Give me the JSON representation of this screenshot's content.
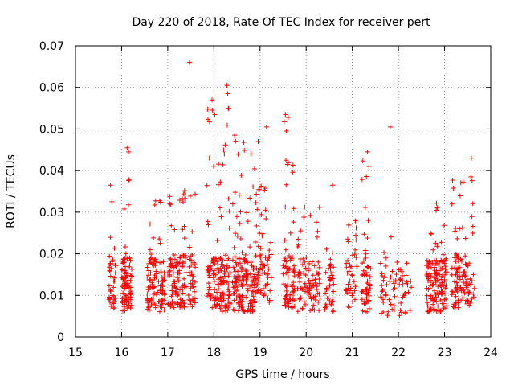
{
  "chart_data": {
    "type": "scatter",
    "title": "Day 220 of 2018, Rate Of TEC Index for receiver pert",
    "xlabel": "GPS time / hours",
    "ylabel": "ROTI / TECUs",
    "xlim": [
      15,
      24
    ],
    "ylim": [
      0,
      0.07
    ],
    "xticks": [
      "15",
      "16",
      "17",
      "18",
      "19",
      "20",
      "21",
      "22",
      "23",
      "24"
    ],
    "yticks": [
      "0",
      "0.01",
      "0.02",
      "0.03",
      "0.04",
      "0.05",
      "0.06",
      "0.07"
    ],
    "xtick_values": [
      15,
      16,
      17,
      18,
      19,
      20,
      21,
      22,
      23,
      24
    ],
    "ytick_values": [
      0,
      0.01,
      0.02,
      0.03,
      0.04,
      0.05,
      0.06,
      0.07
    ],
    "grid": true,
    "marker": "+",
    "color": "#ff0000",
    "series": [
      {
        "name": "ROTI",
        "clusters": [
          {
            "x0": 15.72,
            "x1": 15.88,
            "ymin": 0.006,
            "ymax": 0.025,
            "count": 40
          },
          {
            "x0": 16.0,
            "x1": 16.22,
            "ymin": 0.006,
            "ymax": 0.046,
            "count": 90
          },
          {
            "x0": 16.55,
            "x1": 16.95,
            "ymin": 0.006,
            "ymax": 0.033,
            "count": 110
          },
          {
            "x0": 17.0,
            "x1": 17.4,
            "ymin": 0.007,
            "ymax": 0.036,
            "count": 110
          },
          {
            "x0": 17.45,
            "x1": 17.6,
            "ymin": 0.007,
            "ymax": 0.039,
            "count": 40
          },
          {
            "x0": 17.85,
            "x1": 18.35,
            "ymin": 0.006,
            "ymax": 0.055,
            "count": 150
          },
          {
            "x0": 18.4,
            "x1": 18.9,
            "ymin": 0.006,
            "ymax": 0.048,
            "count": 160
          },
          {
            "x0": 18.9,
            "x1": 19.25,
            "ymin": 0.008,
            "ymax": 0.038,
            "count": 70
          },
          {
            "x0": 19.5,
            "x1": 19.75,
            "ymin": 0.007,
            "ymax": 0.053,
            "count": 80
          },
          {
            "x0": 19.8,
            "x1": 20.3,
            "ymin": 0.006,
            "ymax": 0.033,
            "count": 90
          },
          {
            "x0": 20.4,
            "x1": 20.6,
            "ymin": 0.006,
            "ymax": 0.022,
            "count": 40
          },
          {
            "x0": 20.85,
            "x1": 21.1,
            "ymin": 0.007,
            "ymax": 0.029,
            "count": 40
          },
          {
            "x0": 21.2,
            "x1": 21.4,
            "ymin": 0.006,
            "ymax": 0.044,
            "count": 60
          },
          {
            "x0": 21.6,
            "x1": 22.3,
            "ymin": 0.005,
            "ymax": 0.025,
            "count": 70
          },
          {
            "x0": 22.6,
            "x1": 23.05,
            "ymin": 0.006,
            "ymax": 0.033,
            "count": 140
          },
          {
            "x0": 23.15,
            "x1": 23.65,
            "ymin": 0.007,
            "ymax": 0.039,
            "count": 110
          }
        ],
        "outliers": [
          {
            "x": 15.76,
            "y": 0.0365
          },
          {
            "x": 15.79,
            "y": 0.0325
          },
          {
            "x": 16.12,
            "y": 0.0455
          },
          {
            "x": 16.15,
            "y": 0.0445
          },
          {
            "x": 17.47,
            "y": 0.066
          },
          {
            "x": 17.96,
            "y": 0.057
          },
          {
            "x": 18.02,
            "y": 0.0535
          },
          {
            "x": 18.28,
            "y": 0.0605
          },
          {
            "x": 18.3,
            "y": 0.0585
          },
          {
            "x": 18.32,
            "y": 0.055
          },
          {
            "x": 18.45,
            "y": 0.0485
          },
          {
            "x": 18.96,
            "y": 0.047
          },
          {
            "x": 19.14,
            "y": 0.0505
          },
          {
            "x": 19.55,
            "y": 0.0535
          },
          {
            "x": 19.57,
            "y": 0.0495
          },
          {
            "x": 19.56,
            "y": 0.0425
          },
          {
            "x": 20.57,
            "y": 0.0365
          },
          {
            "x": 21.33,
            "y": 0.0445
          },
          {
            "x": 21.36,
            "y": 0.041
          },
          {
            "x": 21.82,
            "y": 0.0505
          },
          {
            "x": 23.58,
            "y": 0.043
          },
          {
            "x": 23.57,
            "y": 0.0385
          }
        ]
      }
    ]
  }
}
